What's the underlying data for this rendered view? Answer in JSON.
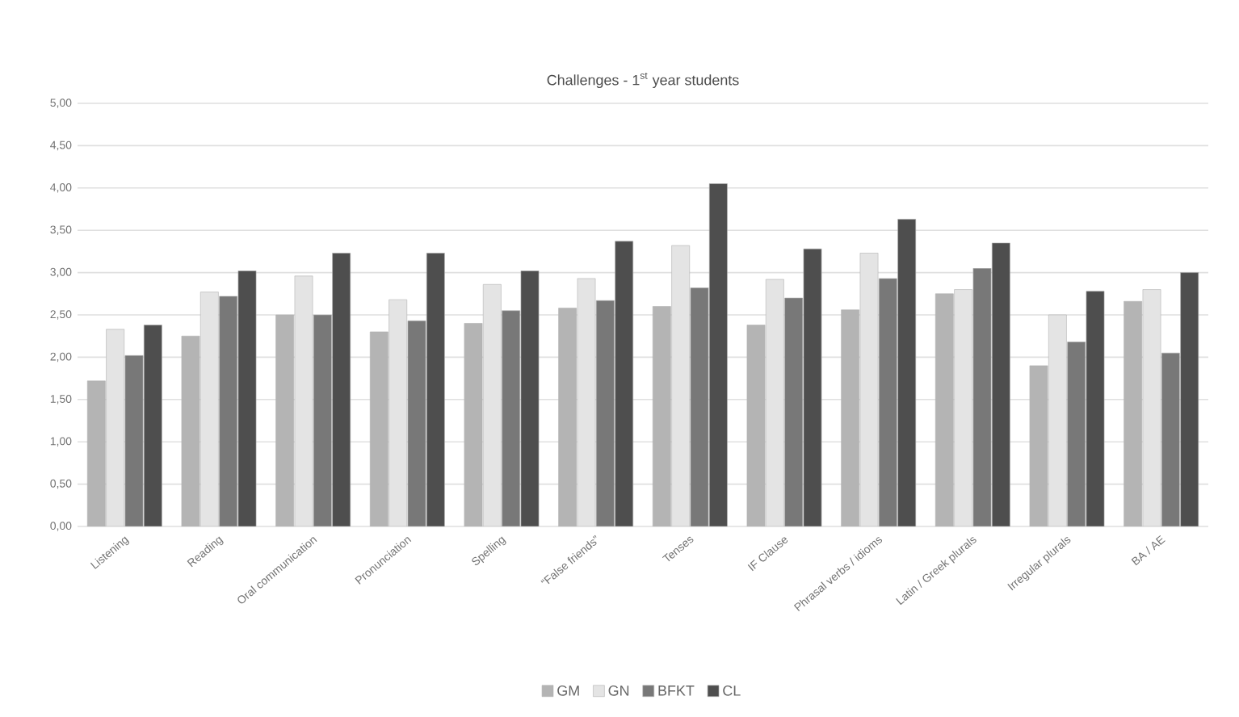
{
  "chart_data": {
    "type": "bar",
    "title": "Challenges - 1$^{st}$ year students",
    "categories": [
      "Listening",
      "Reading",
      "Oral communication",
      "Pronunciation",
      "Spelling",
      "“False friends”",
      "Tenses",
      "IF Clause",
      "Phrasal verbs / idioms",
      "Latin / Greek plurals",
      "Irregular plurals",
      "BA / AE"
    ],
    "series": [
      {
        "name": "GM",
        "color": "#b4b4b4",
        "values": [
          1.72,
          2.25,
          2.5,
          2.3,
          2.4,
          2.58,
          2.6,
          2.38,
          2.56,
          2.75,
          1.9,
          2.66
        ]
      },
      {
        "name": "GN",
        "color": "#e4e4e4",
        "values": [
          2.33,
          2.77,
          2.96,
          2.68,
          2.86,
          2.93,
          3.32,
          2.92,
          3.23,
          2.8,
          2.5,
          2.8
        ]
      },
      {
        "name": "BFKT",
        "color": "#787878",
        "values": [
          2.02,
          2.72,
          2.5,
          2.43,
          2.55,
          2.67,
          2.82,
          2.7,
          2.93,
          3.05,
          2.18,
          2.05
        ]
      },
      {
        "name": "CL",
        "color": "#4e4e4e",
        "values": [
          2.38,
          3.02,
          3.23,
          3.23,
          3.02,
          3.37,
          4.05,
          3.28,
          3.63,
          3.35,
          2.78,
          3.0
        ]
      }
    ],
    "ylim": [
      0,
      5
    ],
    "yticks": [
      {
        "value": 0,
        "label": "0,00"
      },
      {
        "value": 0.5,
        "label": "0,50"
      },
      {
        "value": 1,
        "label": "1,00"
      },
      {
        "value": 1.5,
        "label": "1,50"
      },
      {
        "value": 2,
        "label": "2,00"
      },
      {
        "value": 2.5,
        "label": "2,50"
      },
      {
        "value": 3,
        "label": "3,00"
      },
      {
        "value": 3.5,
        "label": "3,50"
      },
      {
        "value": 4,
        "label": "4,00"
      },
      {
        "value": 4.5,
        "label": "4,50"
      },
      {
        "value": 5,
        "label": "5,00"
      }
    ],
    "grid": "y",
    "legend": "bottom"
  }
}
